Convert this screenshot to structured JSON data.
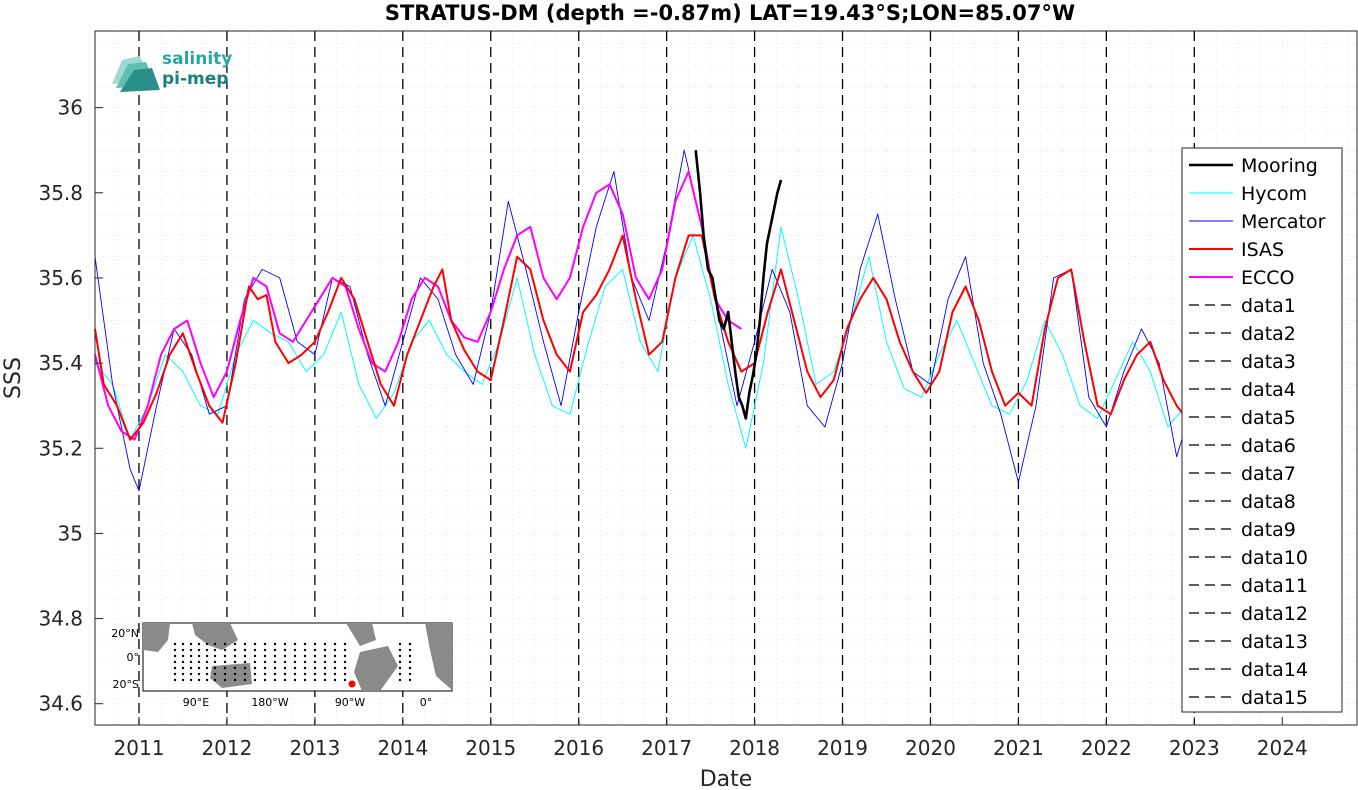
{
  "chart_data": {
    "type": "line",
    "title": "STRATUS-DM (depth =-0.87m) LAT=19.43°S;LON=85.07°W",
    "xlabel": "Date",
    "ylabel": "SSS",
    "xlim": [
      2010.5,
      2024.85
    ],
    "ylim": [
      34.55,
      36.18
    ],
    "x_ticks": [
      2011,
      2012,
      2013,
      2014,
      2015,
      2016,
      2017,
      2018,
      2019,
      2020,
      2021,
      2022,
      2023,
      2024
    ],
    "x_tick_labels": [
      "2011",
      "2012",
      "2013",
      "2014",
      "2015",
      "2016",
      "2017",
      "2018",
      "2019",
      "2020",
      "2021",
      "2022",
      "2023",
      "2024"
    ],
    "y_ticks": [
      34.6,
      34.8,
      35,
      35.2,
      35.4,
      35.6,
      35.8,
      36
    ],
    "y_tick_labels": [
      "34.6",
      "34.8",
      "35",
      "35.2",
      "35.4",
      "35.6",
      "35.8",
      "36"
    ],
    "grid": true,
    "legend_position": "right",
    "vertical_lines_years": [
      2011,
      2012,
      2013,
      2014,
      2015,
      2016,
      2017,
      2018,
      2019,
      2020,
      2021,
      2022,
      2023
    ],
    "series": [
      {
        "name": "Mooring",
        "color": "#000000",
        "x": [
          2017.33,
          2017.38,
          2017.42,
          2017.47,
          2017.52,
          2017.56,
          2017.6,
          2017.65,
          2017.7,
          2017.74,
          2017.78,
          2017.82,
          2017.86,
          2017.9,
          2017.94,
          2017.98,
          2018.02,
          2018.06,
          2018.1,
          2018.14,
          2018.18,
          2018.22,
          2018.26,
          2018.3
        ],
        "y": [
          35.9,
          35.8,
          35.7,
          35.62,
          35.6,
          35.55,
          35.5,
          35.48,
          35.52,
          35.45,
          35.38,
          35.32,
          35.3,
          35.27,
          35.33,
          35.37,
          35.42,
          35.5,
          35.6,
          35.68,
          35.72,
          35.76,
          35.8,
          35.83
        ]
      },
      {
        "name": "Hycom",
        "color": "#00ffff",
        "x": [
          2010.5,
          2010.7,
          2010.9,
          2011.1,
          2011.3,
          2011.5,
          2011.7,
          2011.9,
          2012.1,
          2012.3,
          2012.5,
          2012.7,
          2012.9,
          2013.1,
          2013.3,
          2013.5,
          2013.7,
          2013.9,
          2014.1,
          2014.3,
          2014.5,
          2014.7,
          2014.9,
          2015.1,
          2015.3,
          2015.5,
          2015.7,
          2015.9,
          2016.1,
          2016.3,
          2016.5,
          2016.7,
          2016.9,
          2017.1,
          2017.3,
          2017.5,
          2017.7,
          2017.9,
          2018.1,
          2018.3,
          2018.5,
          2018.7,
          2018.9,
          2019.1,
          2019.3,
          2019.5,
          2019.7,
          2019.9,
          2020.1,
          2020.3,
          2020.5,
          2020.7,
          2020.9,
          2021.1,
          2021.3,
          2021.5,
          2021.7,
          2021.9,
          2022.1,
          2022.3,
          2022.5,
          2022.7,
          2022.9
        ],
        "y": [
          35.4,
          35.35,
          35.22,
          35.3,
          35.42,
          35.38,
          35.3,
          35.28,
          35.42,
          35.5,
          35.47,
          35.45,
          35.38,
          35.42,
          35.52,
          35.35,
          35.27,
          35.33,
          35.45,
          35.5,
          35.42,
          35.38,
          35.35,
          35.45,
          35.6,
          35.42,
          35.3,
          35.28,
          35.44,
          35.58,
          35.62,
          35.45,
          35.38,
          35.6,
          35.7,
          35.55,
          35.35,
          35.2,
          35.4,
          35.72,
          35.55,
          35.35,
          35.38,
          35.5,
          35.65,
          35.45,
          35.34,
          35.32,
          35.42,
          35.5,
          35.4,
          35.3,
          35.28,
          35.36,
          35.5,
          35.42,
          35.3,
          35.27,
          35.36,
          35.45,
          35.38,
          35.25,
          35.3
        ]
      },
      {
        "name": "Mercator",
        "color": "#0000ff",
        "x": [
          2010.5,
          2010.7,
          2010.9,
          2011.0,
          2011.2,
          2011.4,
          2011.6,
          2011.8,
          2012.0,
          2012.2,
          2012.4,
          2012.6,
          2012.8,
          2013.0,
          2013.2,
          2013.4,
          2013.6,
          2013.8,
          2014.0,
          2014.2,
          2014.4,
          2014.6,
          2014.8,
          2015.0,
          2015.2,
          2015.4,
          2015.6,
          2015.8,
          2016.0,
          2016.2,
          2016.4,
          2016.6,
          2016.8,
          2017.0,
          2017.2,
          2017.4,
          2017.6,
          2017.8,
          2018.0,
          2018.2,
          2018.4,
          2018.6,
          2018.8,
          2019.0,
          2019.2,
          2019.4,
          2019.6,
          2019.8,
          2020.0,
          2020.2,
          2020.4,
          2020.6,
          2020.8,
          2021.0,
          2021.2,
          2021.4,
          2021.6,
          2021.8,
          2022.0,
          2022.2,
          2022.4,
          2022.6,
          2022.8,
          2023.0
        ],
        "y": [
          35.65,
          35.35,
          35.15,
          35.1,
          35.3,
          35.48,
          35.42,
          35.28,
          35.3,
          35.55,
          35.62,
          35.6,
          35.45,
          35.42,
          35.6,
          35.58,
          35.42,
          35.3,
          35.45,
          35.6,
          35.55,
          35.42,
          35.35,
          35.52,
          35.78,
          35.62,
          35.45,
          35.3,
          35.52,
          35.72,
          35.85,
          35.6,
          35.5,
          35.68,
          35.9,
          35.72,
          35.5,
          35.3,
          35.45,
          35.62,
          35.52,
          35.3,
          35.25,
          35.4,
          35.62,
          35.75,
          35.55,
          35.38,
          35.35,
          35.55,
          35.65,
          35.4,
          35.28,
          35.12,
          35.3,
          35.6,
          35.62,
          35.32,
          35.25,
          35.38,
          35.48,
          35.4,
          35.18,
          35.32
        ]
      },
      {
        "name": "ISAS",
        "color": "#ff0000",
        "x": [
          2010.5,
          2010.6,
          2010.75,
          2010.9,
          2011.05,
          2011.2,
          2011.35,
          2011.5,
          2011.65,
          2011.8,
          2011.95,
          2012.1,
          2012.25,
          2012.35,
          2012.45,
          2012.55,
          2012.7,
          2012.85,
          2013.0,
          2013.15,
          2013.3,
          2013.45,
          2013.6,
          2013.75,
          2013.9,
          2014.05,
          2014.2,
          2014.35,
          2014.45,
          2014.55,
          2014.7,
          2014.85,
          2015.0,
          2015.15,
          2015.3,
          2015.45,
          2015.6,
          2015.75,
          2015.9,
          2016.05,
          2016.2,
          2016.35,
          2016.5,
          2016.65,
          2016.8,
          2016.95,
          2017.1,
          2017.25,
          2017.4,
          2017.55,
          2017.7,
          2017.85,
          2018.0,
          2018.15,
          2018.3,
          2018.45,
          2018.6,
          2018.75,
          2018.9,
          2019.05,
          2019.2,
          2019.35,
          2019.5,
          2019.65,
          2019.8,
          2019.95,
          2020.1,
          2020.25,
          2020.4,
          2020.55,
          2020.7,
          2020.85,
          2021.0,
          2021.15,
          2021.3,
          2021.45,
          2021.6,
          2021.75,
          2021.9,
          2022.05,
          2022.2,
          2022.35,
          2022.5,
          2022.65,
          2022.8,
          2022.95
        ],
        "y": [
          35.48,
          35.35,
          35.3,
          35.22,
          35.26,
          35.33,
          35.42,
          35.47,
          35.38,
          35.3,
          35.26,
          35.4,
          35.58,
          35.55,
          35.56,
          35.45,
          35.4,
          35.42,
          35.45,
          35.52,
          35.6,
          35.55,
          35.45,
          35.35,
          35.3,
          35.42,
          35.5,
          35.58,
          35.62,
          35.5,
          35.43,
          35.38,
          35.36,
          35.5,
          35.65,
          35.62,
          35.5,
          35.42,
          35.38,
          35.52,
          35.56,
          35.62,
          35.7,
          35.55,
          35.42,
          35.45,
          35.6,
          35.7,
          35.7,
          35.55,
          35.45,
          35.38,
          35.4,
          35.52,
          35.62,
          35.5,
          35.38,
          35.32,
          35.36,
          35.48,
          35.55,
          35.6,
          35.55,
          35.45,
          35.38,
          35.33,
          35.38,
          35.52,
          35.58,
          35.5,
          35.38,
          35.3,
          35.33,
          35.3,
          35.48,
          35.6,
          35.62,
          35.45,
          35.3,
          35.28,
          35.36,
          35.42,
          35.45,
          35.36,
          35.3,
          35.26
        ]
      },
      {
        "name": "ECCO",
        "color": "#ff00ff",
        "x": [
          2010.5,
          2010.65,
          2010.8,
          2010.95,
          2011.1,
          2011.25,
          2011.4,
          2011.55,
          2011.7,
          2011.85,
          2012.0,
          2012.15,
          2012.3,
          2012.45,
          2012.6,
          2012.75,
          2012.9,
          2013.05,
          2013.2,
          2013.35,
          2013.5,
          2013.65,
          2013.8,
          2013.95,
          2014.1,
          2014.25,
          2014.4,
          2014.55,
          2014.7,
          2014.85,
          2015.0,
          2015.15,
          2015.3,
          2015.45,
          2015.6,
          2015.75,
          2015.9,
          2016.05,
          2016.2,
          2016.35,
          2016.5,
          2016.65,
          2016.8,
          2016.95,
          2017.1,
          2017.25,
          2017.4,
          2017.55,
          2017.7,
          2017.85
        ],
        "y": [
          35.42,
          35.3,
          35.24,
          35.22,
          35.3,
          35.42,
          35.48,
          35.5,
          35.4,
          35.32,
          35.38,
          35.5,
          35.6,
          35.58,
          35.47,
          35.45,
          35.5,
          35.55,
          35.6,
          35.58,
          35.48,
          35.4,
          35.38,
          35.45,
          35.55,
          35.6,
          35.58,
          35.5,
          35.46,
          35.45,
          35.52,
          35.62,
          35.7,
          35.72,
          35.6,
          35.55,
          35.6,
          35.72,
          35.8,
          35.82,
          35.75,
          35.6,
          35.55,
          35.62,
          35.78,
          35.85,
          35.72,
          35.55,
          35.5,
          35.48
        ]
      },
      {
        "name": "data1",
        "color": "#000000"
      },
      {
        "name": "data2",
        "color": "#000000"
      },
      {
        "name": "data3",
        "color": "#000000"
      },
      {
        "name": "data4",
        "color": "#000000"
      },
      {
        "name": "data5",
        "color": "#000000"
      },
      {
        "name": "data6",
        "color": "#000000"
      },
      {
        "name": "data7",
        "color": "#000000"
      },
      {
        "name": "data8",
        "color": "#000000"
      },
      {
        "name": "data9",
        "color": "#000000"
      },
      {
        "name": "data10",
        "color": "#000000"
      },
      {
        "name": "data11",
        "color": "#000000"
      },
      {
        "name": "data12",
        "color": "#000000"
      },
      {
        "name": "data13",
        "color": "#000000"
      },
      {
        "name": "data14",
        "color": "#000000"
      },
      {
        "name": "data15",
        "color": "#000000"
      }
    ]
  },
  "logo": {
    "line1": "salinity",
    "line2": "pi-mep"
  },
  "inset_map": {
    "lat_labels": [
      "20°N",
      "0°",
      "20°S"
    ],
    "lon_labels": [
      "90°E",
      "180°W",
      "90°W",
      "0°"
    ],
    "location_marker_color": "#ff0000"
  }
}
